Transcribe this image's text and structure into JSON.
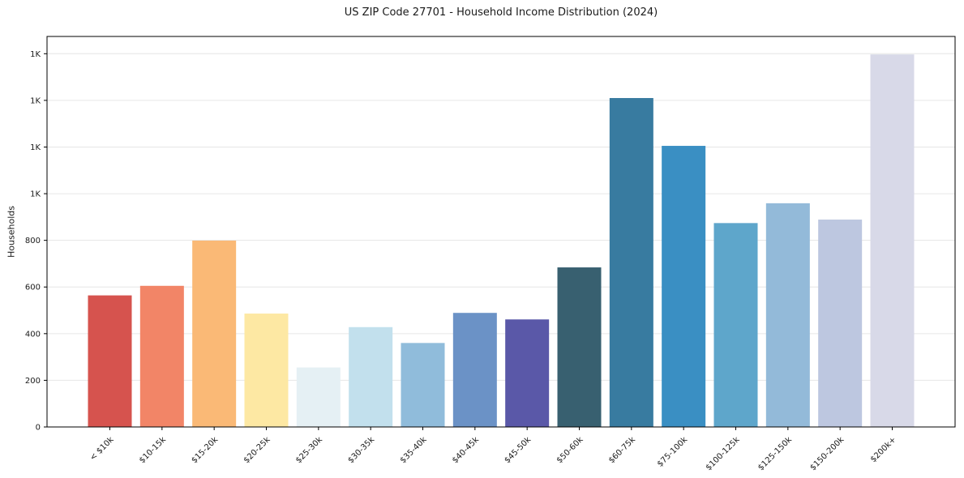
{
  "chart_data": {
    "type": "bar",
    "title": "US ZIP Code 27701 - Household Income Distribution (2024)",
    "ylabel": "Households",
    "xlabel": "",
    "categories": [
      "< $10k",
      "$10-15k",
      "$15-20k",
      "$20-25k",
      "$25-30k",
      "$30-35k",
      "$35-40k",
      "$40-45k",
      "$45-50k",
      "$50-60k",
      "$60-75k",
      "$75-100k",
      "$100-125k",
      "$125-150k",
      "$150-200k",
      "$200k+"
    ],
    "values": [
      564,
      605,
      799,
      486,
      255,
      428,
      360,
      489,
      461,
      684,
      1410,
      1205,
      874,
      959,
      889,
      1597
    ],
    "bar_colors": [
      "#d6534e",
      "#f28567",
      "#fab976",
      "#fde8a3",
      "#e5f0f4",
      "#c2e0ed",
      "#90bcdb",
      "#6b92c6",
      "#5a58a8",
      "#386070",
      "#387ba0",
      "#3a8fc3",
      "#5ea6cb",
      "#93bad9",
      "#bdc7e0",
      "#d8d9e8"
    ],
    "ylim": [
      0,
      1674
    ],
    "yticks": [
      {
        "v": 0,
        "label": "0"
      },
      {
        "v": 200,
        "label": "200"
      },
      {
        "v": 400,
        "label": "400"
      },
      {
        "v": 600,
        "label": "600"
      },
      {
        "v": 800,
        "label": "800"
      },
      {
        "v": 1000,
        "label": "1K"
      },
      {
        "v": 1200,
        "label": "1K"
      },
      {
        "v": 1400,
        "label": "1K"
      },
      {
        "v": 1600,
        "label": "1K"
      }
    ],
    "grid": "horizontal",
    "grid_color": "#e6e6e6",
    "spine_color": "#000000",
    "legend": "none",
    "x_tick_rotation_deg": 45
  }
}
